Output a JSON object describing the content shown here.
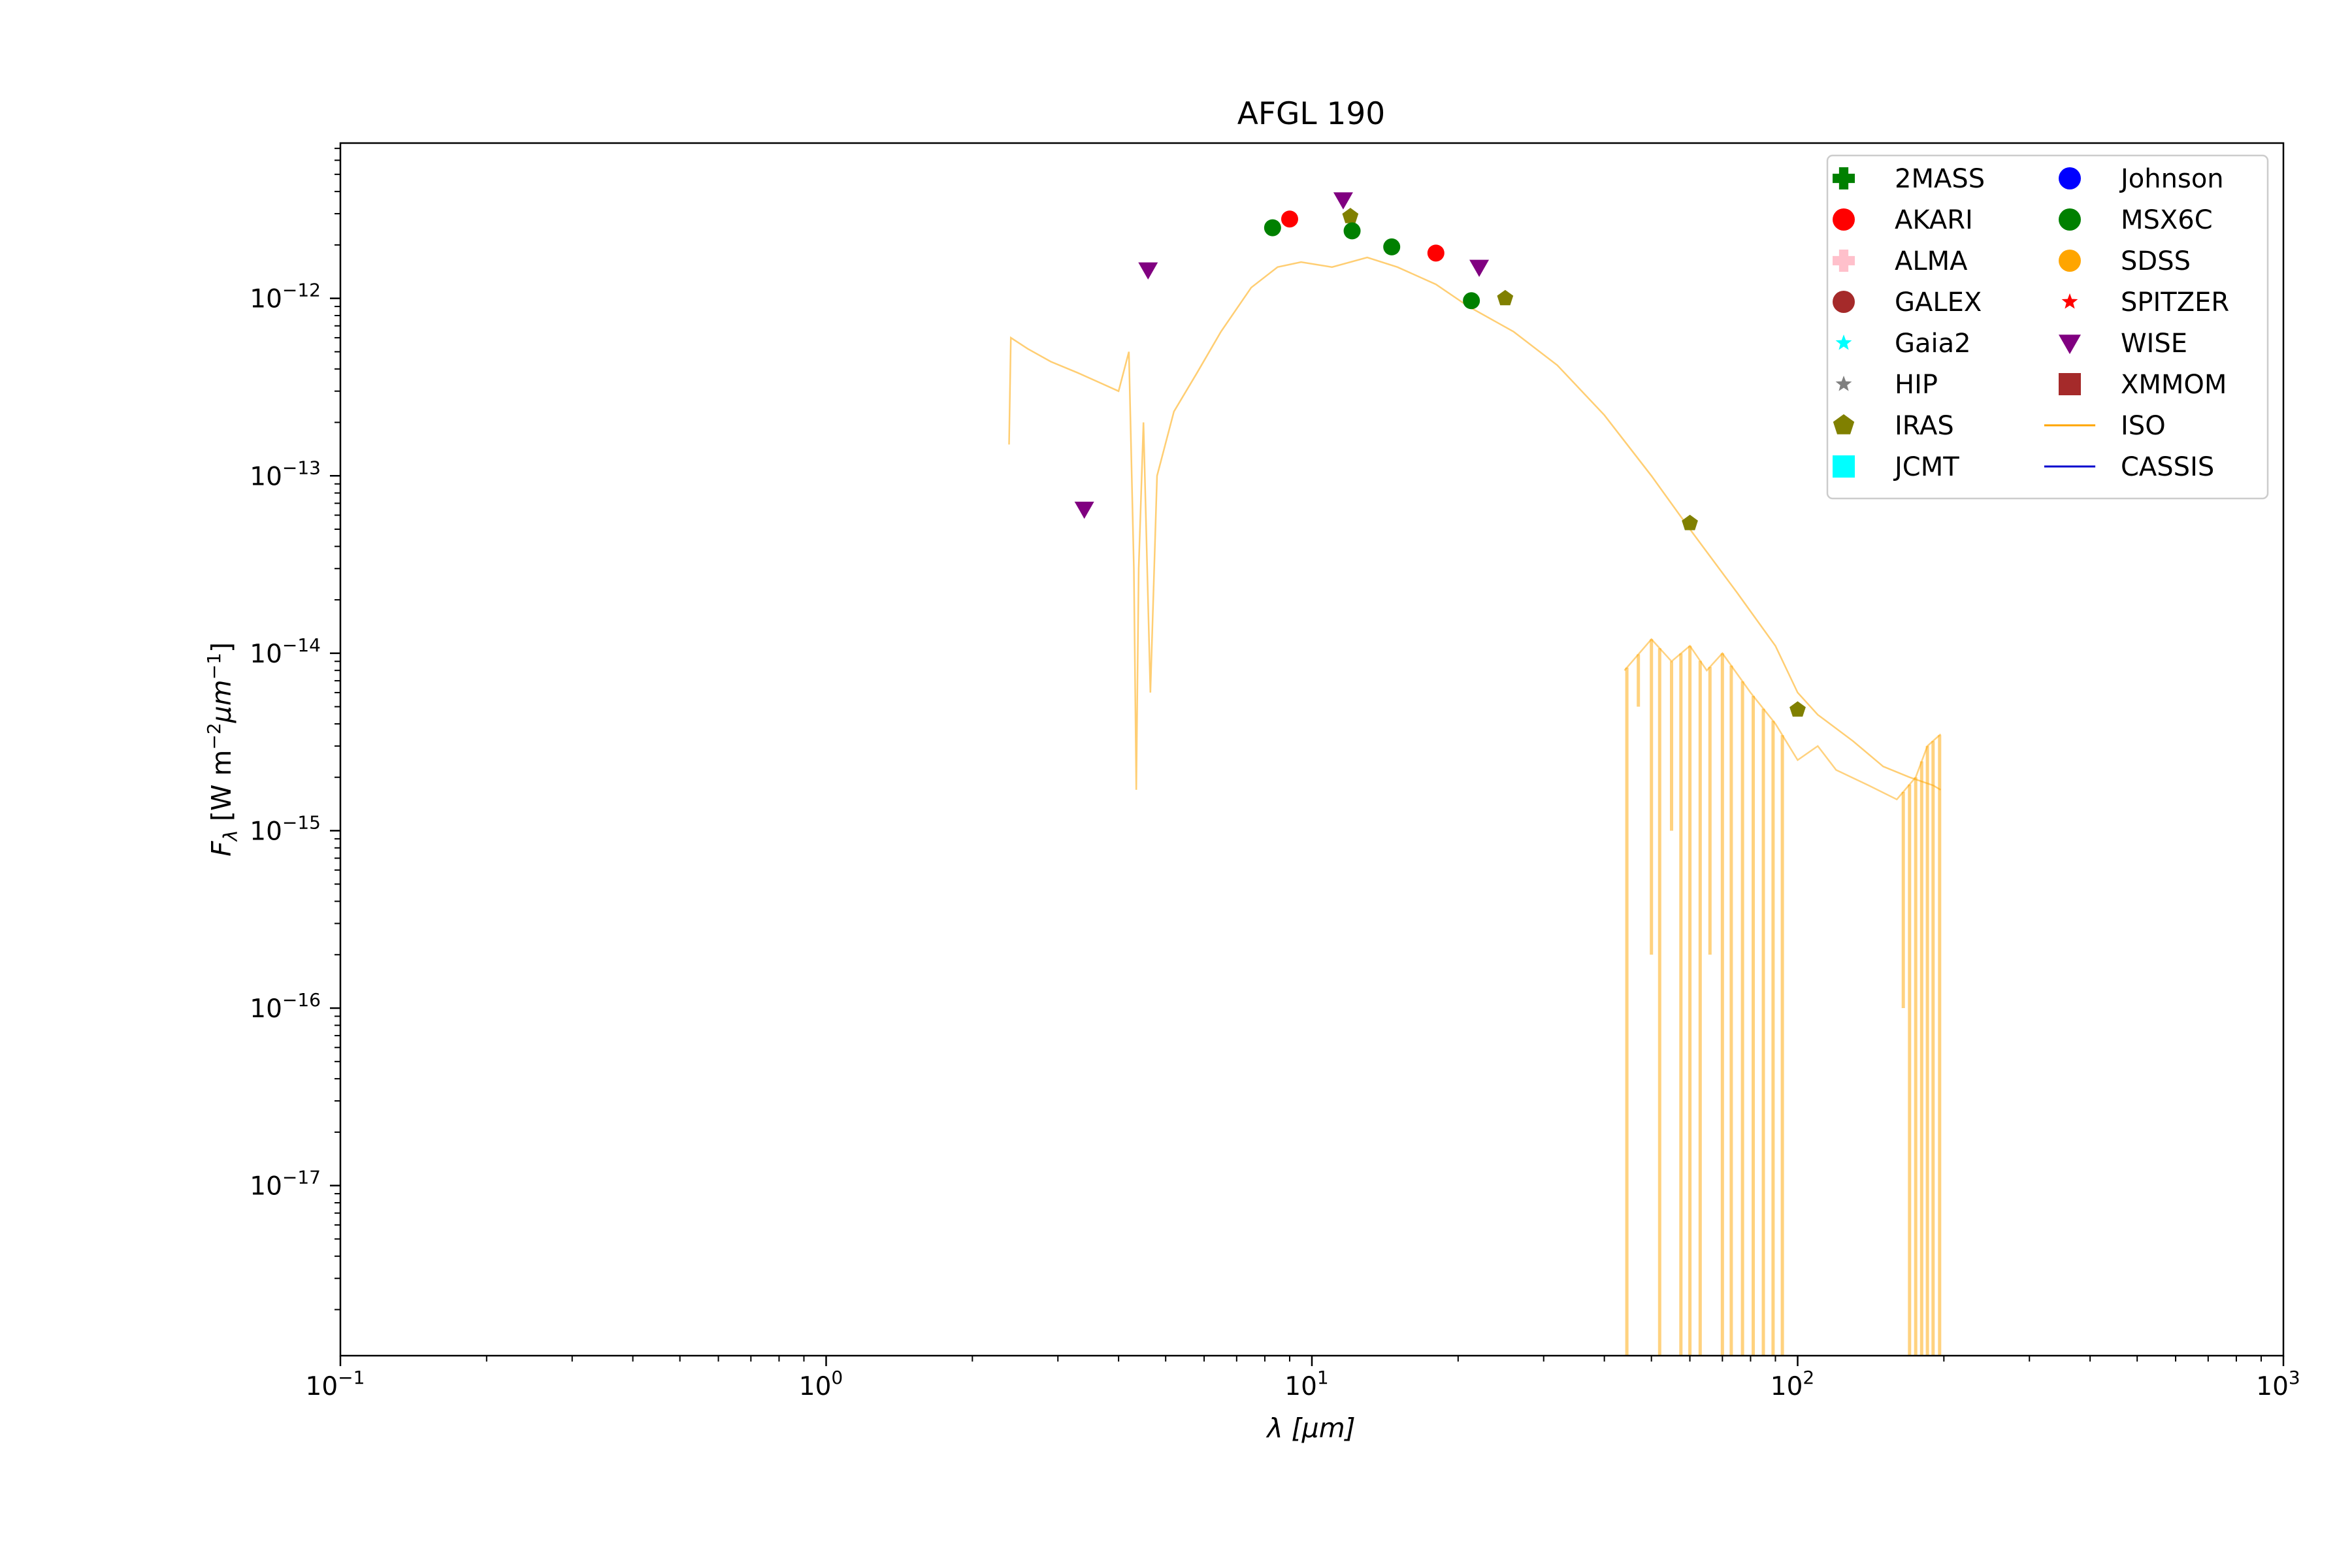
{
  "chart_data": {
    "type": "scatter",
    "title": "AFGL 190",
    "xlabel": "λ [μm]",
    "ylabel_main": "F",
    "ylabel_sub": "λ",
    "ylabel_rest": " [W m",
    "ylabel_exp1": "−2",
    "ylabel_mu": "μm",
    "ylabel_exp2": "−1",
    "ylabel_close": "]",
    "x_scale": "log",
    "y_scale": "log",
    "xlim": [
      0.1,
      1000
    ],
    "ylim": [
      1.1e-18,
      7.5e-12
    ],
    "grid": false,
    "legend_position": "upper right",
    "x_ticks": [
      {
        "base": "10",
        "exp": "−1",
        "value": 0.1
      },
      {
        "base": "10",
        "exp": "0",
        "value": 1
      },
      {
        "base": "10",
        "exp": "1",
        "value": 10
      },
      {
        "base": "10",
        "exp": "2",
        "value": 100
      },
      {
        "base": "10",
        "exp": "3",
        "value": 1000
      }
    ],
    "y_ticks": [
      {
        "base": "10",
        "exp": "−17",
        "value": 1e-17
      },
      {
        "base": "10",
        "exp": "−16",
        "value": 1e-16
      },
      {
        "base": "10",
        "exp": "−15",
        "value": 1e-15
      },
      {
        "base": "10",
        "exp": "−14",
        "value": 1e-14
      },
      {
        "base": "10",
        "exp": "−13",
        "value": 1e-13
      },
      {
        "base": "10",
        "exp": "−12",
        "value": 1e-12
      }
    ],
    "series": [
      {
        "name": "2MASS",
        "marker": "plus",
        "color": "#008000",
        "points": []
      },
      {
        "name": "AKARI",
        "marker": "circle",
        "color": "#ff0000",
        "points": [
          [
            9.0,
            2.8e-12
          ],
          [
            18.0,
            1.8e-12
          ]
        ]
      },
      {
        "name": "ALMA",
        "marker": "plus",
        "color": "#ffc0cb",
        "points": []
      },
      {
        "name": "GALEX",
        "marker": "circle",
        "color": "#a52a2a",
        "points": []
      },
      {
        "name": "Gaia2",
        "marker": "star",
        "color": "#00ffff",
        "points": []
      },
      {
        "name": "HIP",
        "marker": "star",
        "color": "#808080",
        "points": []
      },
      {
        "name": "IRAS",
        "marker": "pentagon",
        "color": "#808000",
        "points": [
          [
            12.0,
            2.9e-12
          ],
          [
            25.0,
            1e-12
          ],
          [
            60.0,
            5.4e-14
          ],
          [
            100.0,
            4.8e-15
          ]
        ]
      },
      {
        "name": "JCMT",
        "marker": "square",
        "color": "#00ffff",
        "points": []
      },
      {
        "name": "Johnson",
        "marker": "circle",
        "color": "#0000ff",
        "points": []
      },
      {
        "name": "MSX6C",
        "marker": "circle",
        "color": "#008000",
        "points": [
          [
            8.3,
            2.5e-12
          ],
          [
            12.1,
            2.4e-12
          ],
          [
            14.6,
            1.95e-12
          ],
          [
            21.3,
            9.7e-13
          ]
        ]
      },
      {
        "name": "SDSS",
        "marker": "circle",
        "color": "#ffa500",
        "points": []
      },
      {
        "name": "SPITZER",
        "marker": "star",
        "color": "#ff0000",
        "points": []
      },
      {
        "name": "WISE",
        "marker": "triangle-down",
        "color": "#800080",
        "points": [
          [
            3.4,
            6.5e-14
          ],
          [
            4.6,
            1.45e-12
          ],
          [
            11.6,
            3.6e-12
          ],
          [
            22.1,
            1.5e-12
          ]
        ]
      },
      {
        "name": "XMMOM",
        "marker": "square",
        "color": "#a52a2a",
        "points": []
      },
      {
        "name": "ISO",
        "marker": "line",
        "color": "#ffa500",
        "points": [
          [
            2.38,
            1.5e-13
          ],
          [
            2.4,
            6e-13
          ],
          [
            2.6,
            5.2e-13
          ],
          [
            2.9,
            4.4e-13
          ],
          [
            3.3,
            3.8e-13
          ],
          [
            3.7,
            3.3e-13
          ],
          [
            4.0,
            3e-13
          ],
          [
            4.2,
            5e-13
          ],
          [
            4.3,
            3e-14
          ],
          [
            4.35,
            1.7e-15
          ],
          [
            4.4,
            3e-14
          ],
          [
            4.5,
            2e-13
          ],
          [
            4.65,
            6e-15
          ],
          [
            4.8,
            1e-13
          ],
          [
            5.2,
            2.3e-13
          ],
          [
            5.8,
            3.8e-13
          ],
          [
            6.5,
            6.5e-13
          ],
          [
            7.5,
            1.15e-12
          ],
          [
            8.5,
            1.5e-12
          ],
          [
            9.5,
            1.6e-12
          ],
          [
            11.0,
            1.5e-12
          ],
          [
            13.0,
            1.7e-12
          ],
          [
            15.0,
            1.5e-12
          ],
          [
            18.0,
            1.2e-12
          ],
          [
            21.0,
            9e-13
          ],
          [
            26.0,
            6.5e-13
          ],
          [
            32.0,
            4.2e-13
          ],
          [
            40.0,
            2.2e-13
          ],
          [
            50.0,
            1e-13
          ],
          [
            60.0,
            5e-14
          ],
          [
            75.0,
            2.2e-14
          ],
          [
            90.0,
            1.1e-14
          ],
          [
            100.0,
            6e-15
          ],
          [
            110.0,
            4.5e-15
          ],
          [
            130.0,
            3.2e-15
          ],
          [
            150.0,
            2.3e-15
          ],
          [
            170.0,
            2e-15
          ],
          [
            190.0,
            1.8e-15
          ],
          [
            197.0,
            1.7e-15
          ]
        ]
      },
      {
        "name": "CASSIS",
        "marker": "line",
        "color": "#0000cd",
        "points": []
      }
    ],
    "iso_lower_band": [
      [
        44.0,
        8e-15
      ],
      [
        50.0,
        1.2e-14
      ],
      [
        55.0,
        9e-15
      ],
      [
        60.0,
        1.1e-14
      ],
      [
        65.0,
        8e-15
      ],
      [
        70.0,
        1e-14
      ],
      [
        80.0,
        6e-15
      ],
      [
        90.0,
        4e-15
      ],
      [
        100.0,
        2.5e-15
      ],
      [
        110.0,
        3e-15
      ],
      [
        120.0,
        2.2e-15
      ],
      [
        140.0,
        1.8e-15
      ],
      [
        160.0,
        1.5e-15
      ],
      [
        175.0,
        2e-15
      ],
      [
        185.0,
        3e-15
      ],
      [
        197.0,
        3.5e-15
      ]
    ],
    "iso_deep_drops": [
      [
        44.5,
        1.1e-18
      ],
      [
        47.0,
        5e-15
      ],
      [
        50.0,
        2e-16
      ],
      [
        52.0,
        1.1e-18
      ],
      [
        55.0,
        1e-15
      ],
      [
        57.5,
        1.1e-18
      ],
      [
        60.0,
        1.1e-18
      ],
      [
        63.0,
        1.1e-18
      ],
      [
        66.0,
        2e-16
      ],
      [
        70.0,
        1.1e-18
      ],
      [
        73.0,
        1.1e-18
      ],
      [
        77.0,
        1.1e-18
      ],
      [
        81.0,
        1.1e-18
      ],
      [
        85.0,
        1.1e-18
      ],
      [
        89.0,
        1.1e-18
      ],
      [
        93.0,
        1.1e-18
      ],
      [
        165.0,
        1e-16
      ],
      [
        170.0,
        1.1e-18
      ],
      [
        175.0,
        1.1e-18
      ],
      [
        180.0,
        1.1e-18
      ],
      [
        185.0,
        1.1e-18
      ],
      [
        190.0,
        1.1e-18
      ],
      [
        196.0,
        1.1e-18
      ]
    ]
  }
}
